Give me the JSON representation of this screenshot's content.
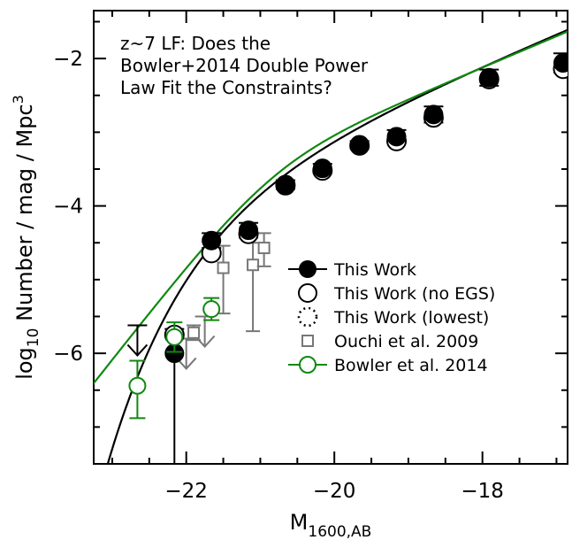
{
  "chart_data": {
    "type": "scatter",
    "title_lines": [
      "z~7 LF: Does the",
      "Bowler+2014 Double Power",
      "Law Fit the Constraints?"
    ],
    "xlabel": {
      "main": "M",
      "sub": "1600,AB"
    },
    "ylabel": {
      "pre": "log",
      "sub": "10",
      "post": " Number / mag / Mpc",
      "sup": "3"
    },
    "xlim": [
      -23.25,
      -16.85
    ],
    "ylim": [
      -7.5,
      -1.35
    ],
    "x_ticks": [
      -22,
      -20,
      -18
    ],
    "x_tick_labels": [
      "−22",
      "−20",
      "−18"
    ],
    "y_ticks": [
      -6,
      -4,
      -2
    ],
    "y_tick_labels": [
      "−6",
      "−4",
      "−2"
    ],
    "colors": {
      "black": "#000000",
      "gray": "#777777",
      "green": "#118811"
    },
    "legend": [
      {
        "label": "This Work",
        "marker": "filled-circle",
        "color": "#000000"
      },
      {
        "label": "This Work (no EGS)",
        "marker": "open-circle",
        "color": "#000000"
      },
      {
        "label": "This Work (lowest)",
        "marker": "dotted-circle",
        "color": "#000000"
      },
      {
        "label": "Ouchi et al. 2009",
        "marker": "open-square",
        "color": "#777777"
      },
      {
        "label": "Bowler et al. 2014",
        "marker": "open-circle-line",
        "color": "#118811"
      }
    ],
    "series": [
      {
        "name": "This Work",
        "marker": "filled-circle",
        "color": "#000000",
        "points": [
          {
            "x": -22.16,
            "y": -6.0,
            "err_hi": 0.33,
            "err_lo": 1.5
          },
          {
            "x": -21.66,
            "y": -4.47,
            "err_hi": 0.1,
            "err_lo": 0.1
          },
          {
            "x": -21.16,
            "y": -4.33,
            "err_hi": 0.1,
            "err_lo": 0.1
          },
          {
            "x": -20.66,
            "y": -3.71,
            "err_hi": 0.06,
            "err_lo": 0.06
          },
          {
            "x": -20.16,
            "y": -3.49,
            "err_hi": 0.06,
            "err_lo": 0.06
          },
          {
            "x": -19.66,
            "y": -3.17,
            "err_hi": 0.05,
            "err_lo": 0.05
          },
          {
            "x": -19.16,
            "y": -3.06,
            "err_hi": 0.09,
            "err_lo": 0.09
          },
          {
            "x": -18.66,
            "y": -2.76,
            "err_hi": 0.11,
            "err_lo": 0.11
          },
          {
            "x": -17.91,
            "y": -2.26,
            "err_hi": 0.11,
            "err_lo": 0.11
          },
          {
            "x": -16.91,
            "y": -2.06,
            "err_hi": 0.13,
            "err_lo": 0.13
          }
        ],
        "upper_limits": [
          {
            "x": -22.66,
            "y": -5.62
          }
        ]
      },
      {
        "name": "This Work (no EGS)",
        "marker": "open-circle",
        "color": "#000000",
        "points": [
          {
            "x": -22.16,
            "y": -5.75
          },
          {
            "x": -21.66,
            "y": -4.64
          },
          {
            "x": -21.16,
            "y": -4.38
          },
          {
            "x": -20.66,
            "y": -3.72
          },
          {
            "x": -20.16,
            "y": -3.52
          },
          {
            "x": -19.66,
            "y": -3.18
          },
          {
            "x": -19.16,
            "y": -3.12
          },
          {
            "x": -18.66,
            "y": -2.8
          },
          {
            "x": -17.91,
            "y": -2.28
          },
          {
            "x": -16.91,
            "y": -2.14
          }
        ]
      },
      {
        "name": "Ouchi et al. 2009",
        "marker": "open-square",
        "color": "#777777",
        "points": [
          {
            "x": -21.9,
            "y": -5.72,
            "err_hi": 0.1,
            "err_lo": 0.1
          },
          {
            "x": -21.5,
            "y": -4.84,
            "err_hi": 0.3,
            "err_lo": 0.62
          },
          {
            "x": -21.1,
            "y": -4.8,
            "err_hi": 0.3,
            "err_lo": 0.9
          },
          {
            "x": -20.95,
            "y": -4.57,
            "err_hi": 0.2,
            "err_lo": 0.25
          }
        ],
        "upper_limits": [
          {
            "x": -22.0,
            "y": -5.8
          },
          {
            "x": -21.75,
            "y": -5.5
          }
        ]
      },
      {
        "name": "Bowler et al. 2014",
        "marker": "open-circle-line",
        "color": "#118811",
        "points": [
          {
            "x": -22.66,
            "y": -6.44,
            "err_hi": 0.34,
            "err_lo": 0.44
          },
          {
            "x": -22.16,
            "y": -5.78,
            "err_hi": 0.2,
            "err_lo": 0.2
          },
          {
            "x": -21.66,
            "y": -5.4,
            "err_hi": 0.15,
            "err_lo": 0.15
          }
        ]
      }
    ],
    "fits": [
      {
        "name": "Schechter fit (This Work)",
        "color": "#000000",
        "M_star": -20.87,
        "phi_star_log": -3.27,
        "alpha": -2.06
      },
      {
        "name": "Double power law (Bowler et al. 2014)",
        "color": "#118811",
        "M_star": -20.85,
        "phi_star_log": -3.33,
        "alpha": -2.06,
        "beta": -4.2
      }
    ]
  }
}
